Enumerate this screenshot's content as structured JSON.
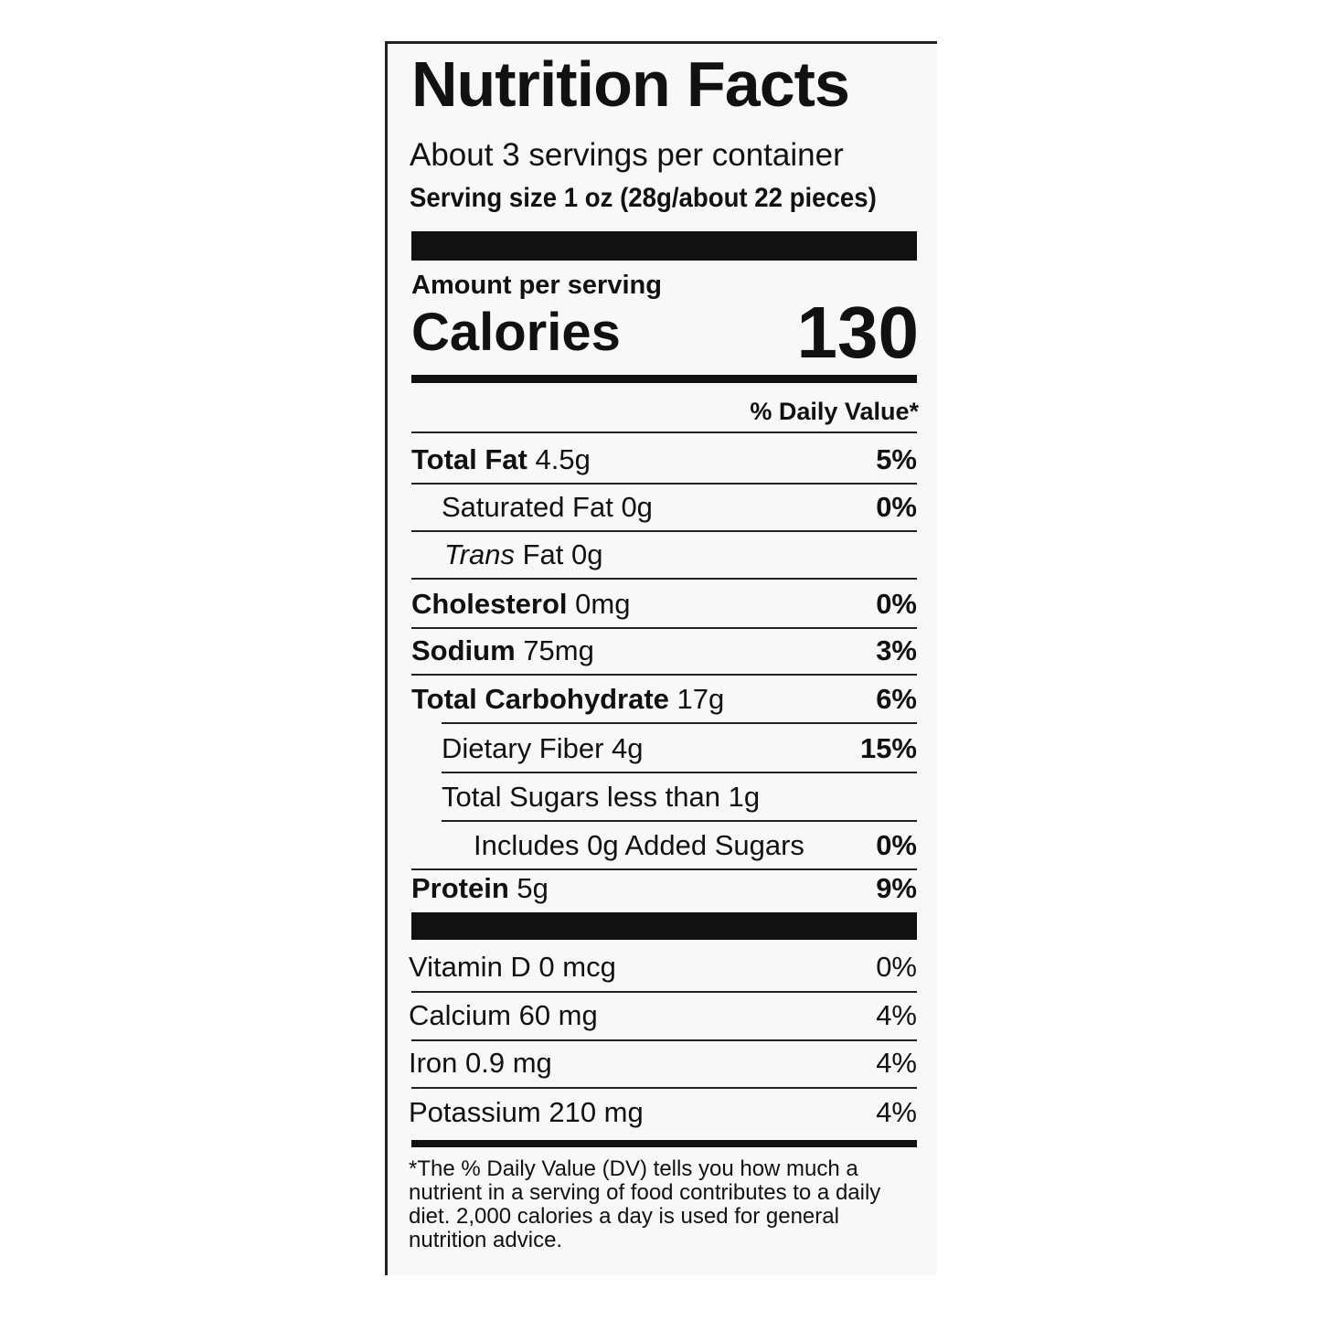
{
  "title": "Nutrition Facts",
  "servings_per_container": "About 3 servings per container",
  "serving_size": "Serving size 1 oz (28g/about 22 pieces)",
  "amount_per_serving": "Amount per serving",
  "calories_label": "Calories",
  "calories_value": "130",
  "daily_value_header": "% Daily Value*",
  "nutrients": [
    {
      "name": "Total Fat",
      "amount": "4.5g",
      "dv": "5%"
    },
    {
      "text": "Saturated Fat 0g",
      "dv": "0%"
    },
    {
      "name_italic": "Trans",
      "text": "Fat 0g"
    },
    {
      "name": "Cholesterol",
      "amount": "0mg",
      "dv": "0%"
    },
    {
      "name": "Sodium",
      "amount": "75mg",
      "dv": "3%"
    },
    {
      "name": "Total Carbohydrate",
      "amount": "17g",
      "dv": "6%"
    },
    {
      "text": "Dietary Fiber 4g",
      "dv": "15%"
    },
    {
      "text": "Total Sugars less than 1g"
    },
    {
      "text": "Includes 0g Added Sugars",
      "dv": "0%"
    },
    {
      "name": "Protein",
      "amount": "5g",
      "dv": "9%"
    }
  ],
  "vitamins_minerals": [
    {
      "text": "Vitamin D 0 mcg",
      "dv": "0%"
    },
    {
      "text": "Calcium 60 mg",
      "dv": "4%"
    },
    {
      "text": "Iron 0.9 mg",
      "dv": "4%"
    },
    {
      "text": "Potassium 210 mg",
      "dv": "4%"
    }
  ],
  "footnote": "*The % Daily Value (DV) tells you how much a nutrient in a serving of food contributes to a daily diet. 2,000 calories a day is used for general nutrition advice."
}
